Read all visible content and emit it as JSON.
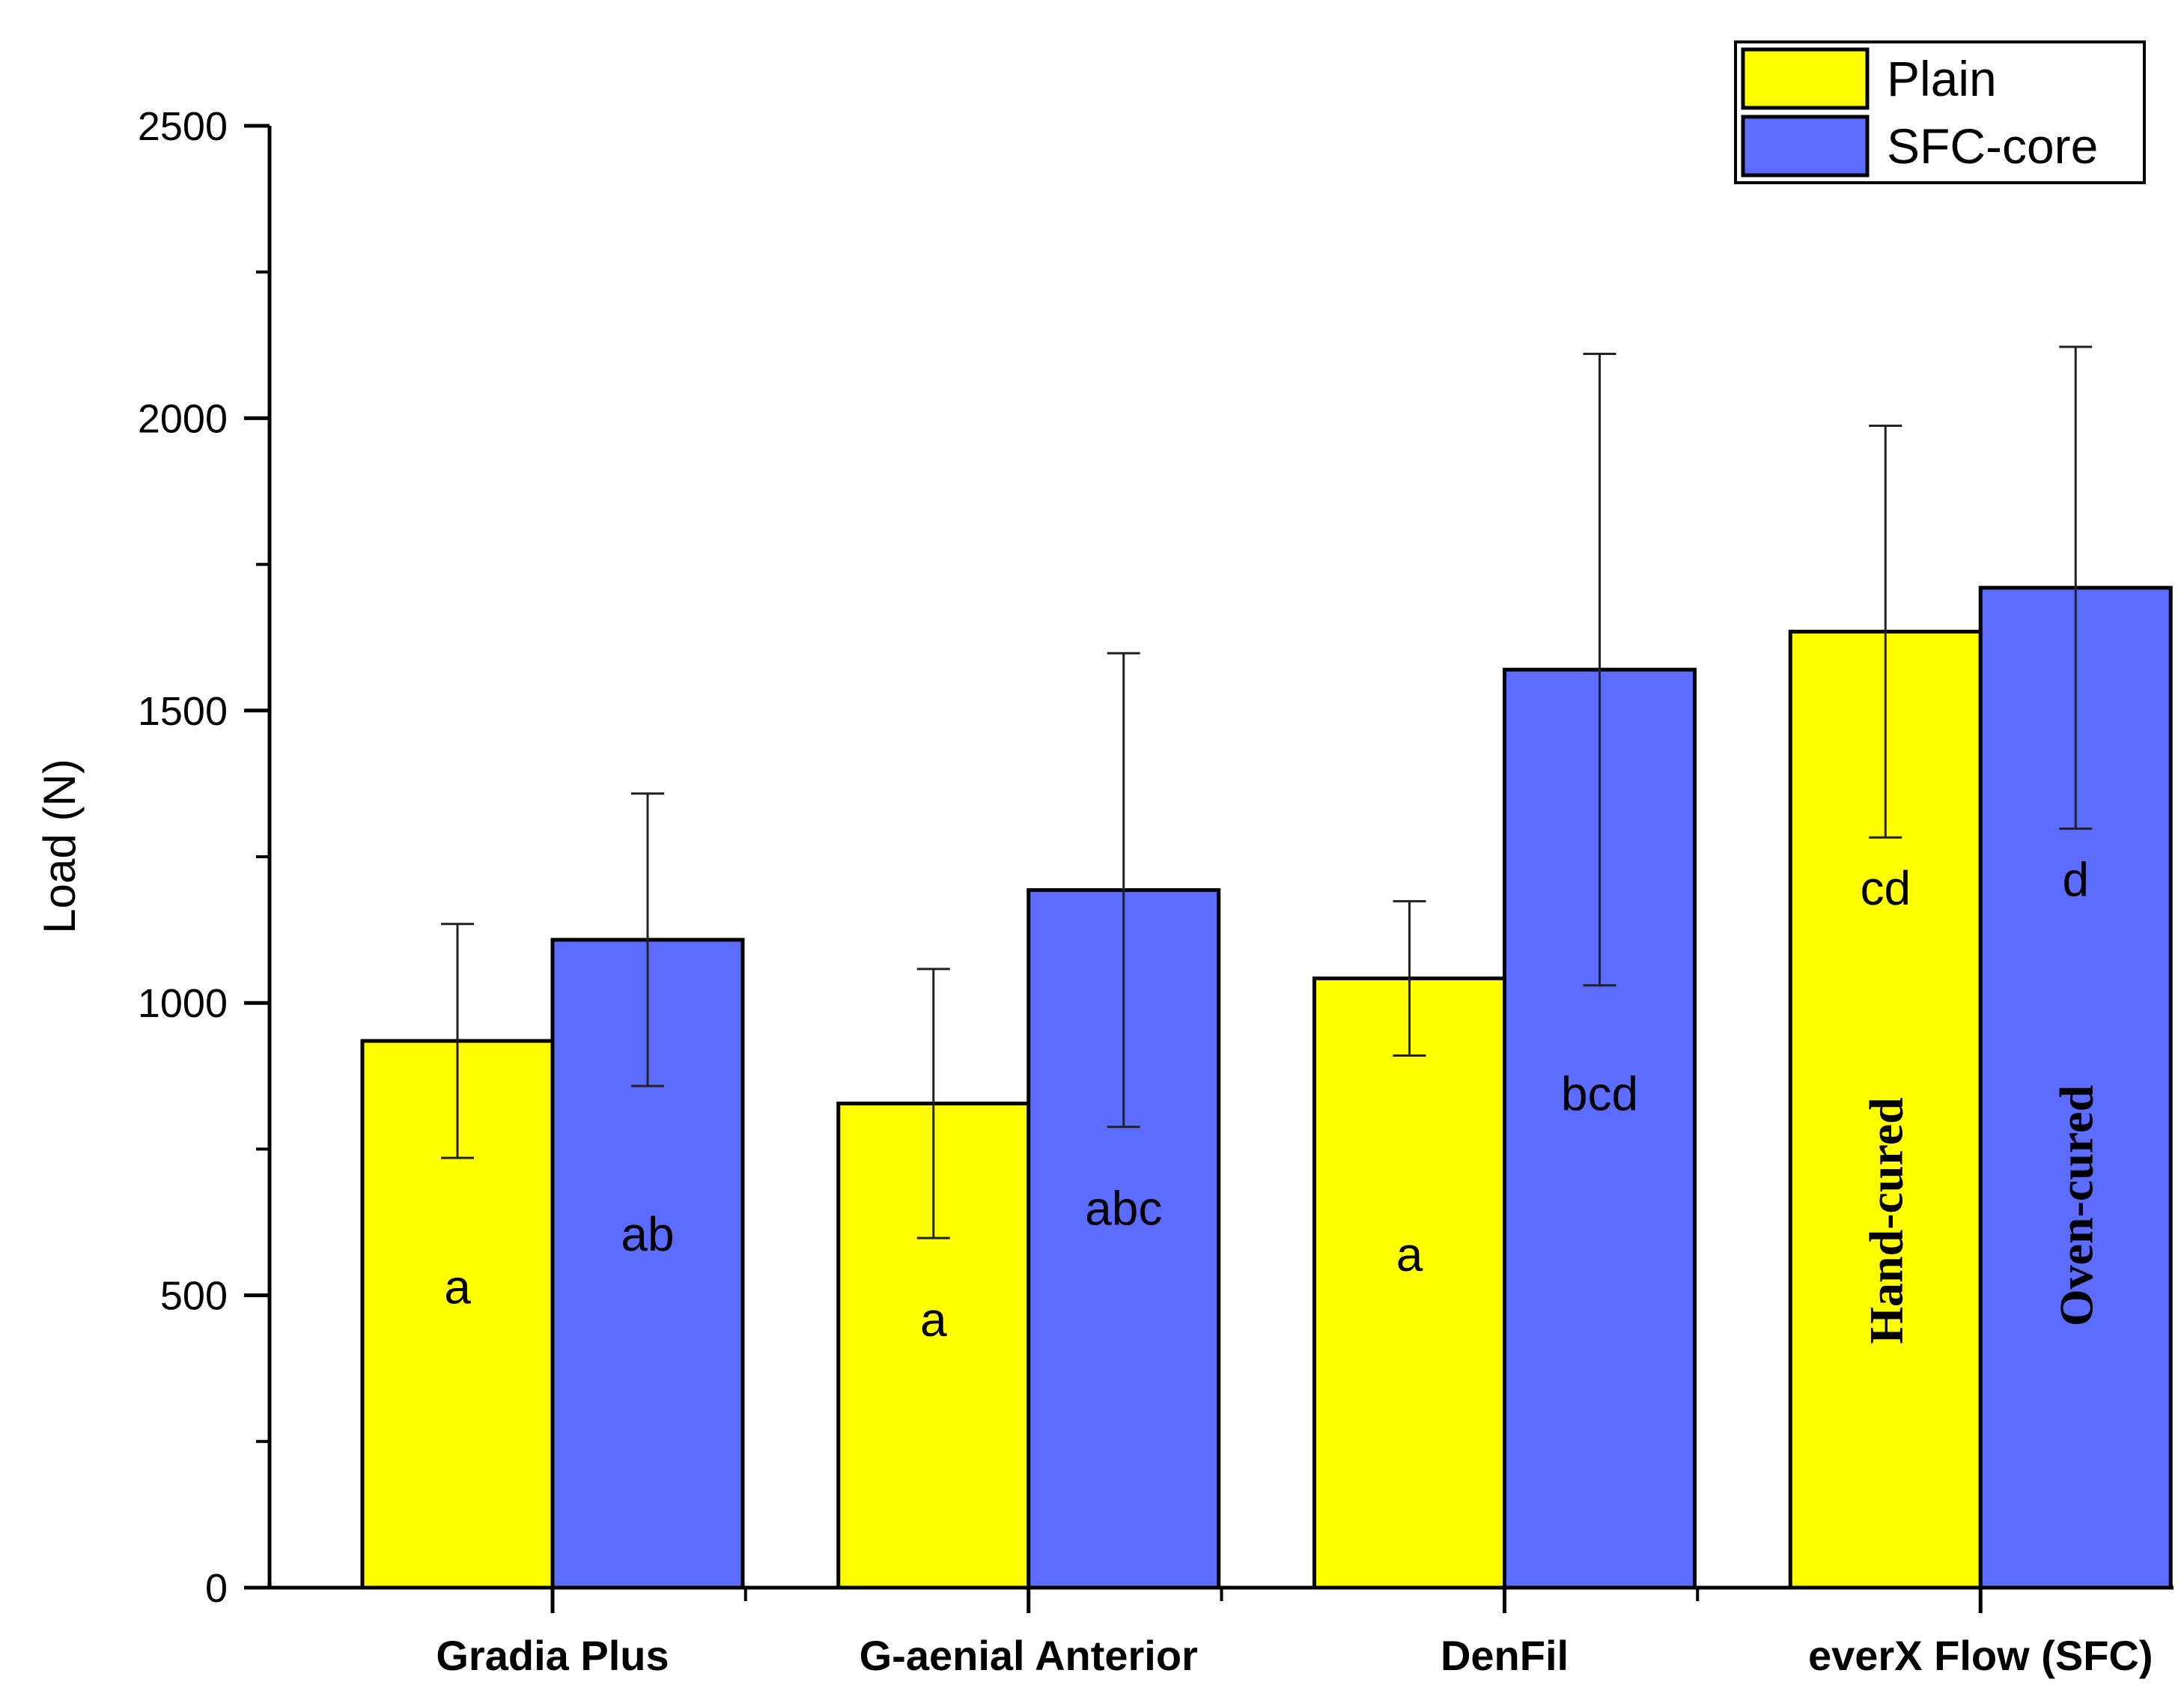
{
  "chart_data": {
    "type": "bar",
    "title": "",
    "xlabel": "",
    "ylabel": "Load (N)",
    "ylim": [
      0,
      2500
    ],
    "yticks": [
      0,
      500,
      1000,
      1500,
      2000,
      2500
    ],
    "grid": false,
    "legend_position": "top-right",
    "categories": [
      "Gradia Plus",
      "G-aenial Anterior",
      "DenFil",
      "everX Flow (SFC)"
    ],
    "series": [
      {
        "name": "Plain",
        "color": "#ffff00",
        "values": [
          935,
          828,
          1042,
          1635
        ],
        "errors": [
          200,
          230,
          132,
          352
        ],
        "labels": [
          "a",
          "a",
          "a",
          "cd"
        ]
      },
      {
        "name": "SFC-core",
        "color": "#5b6cff",
        "values": [
          1108,
          1193,
          1570,
          1710
        ],
        "errors": [
          250,
          405,
          540,
          412
        ],
        "labels": [
          "ab",
          "abc",
          "bcd",
          "d"
        ]
      }
    ],
    "annotations": [
      {
        "category": "everX Flow (SFC)",
        "series": "Plain",
        "text": "Hand-cured"
      },
      {
        "category": "everX Flow (SFC)",
        "series": "SFC-core",
        "text": "Oven-cured"
      }
    ]
  }
}
